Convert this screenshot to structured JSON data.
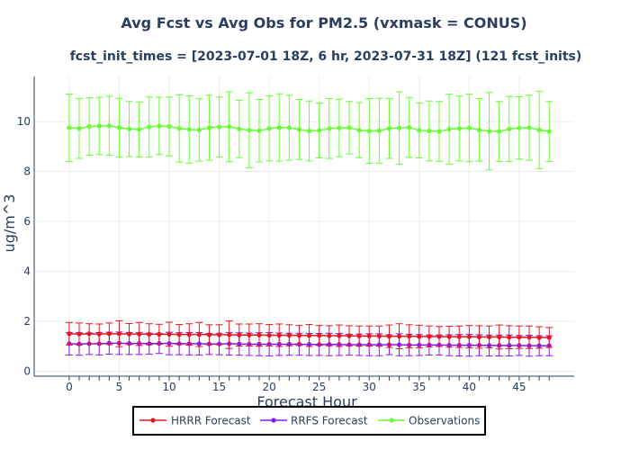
{
  "chart_data": {
    "type": "line",
    "title": "Avg Fcst vs Avg Obs for PM2.5 (vxmask = CONUS)",
    "subtitle": "fcst_init_times = [2023-07-01 18Z, 6 hr, 2023-07-31 18Z] (121 fcst_inits)",
    "xlabel": "Forecast Hour",
    "ylabel": "ug/m^3",
    "xlim": [
      -3.5,
      50.5
    ],
    "ylim": [
      -0.2,
      11.8
    ],
    "xticks": [
      0,
      5,
      10,
      15,
      20,
      25,
      30,
      35,
      40,
      45
    ],
    "xtick_labels": [
      "0",
      "5",
      "10",
      "15",
      "20",
      "25",
      "30",
      "35",
      "40",
      "45"
    ],
    "yticks": [
      0,
      2,
      4,
      6,
      8,
      10
    ],
    "ytick_labels": [
      "0",
      "2",
      "4",
      "6",
      "8",
      "10"
    ],
    "legend_position": "bottom-center",
    "x": [
      0,
      1,
      2,
      3,
      4,
      5,
      6,
      7,
      8,
      9,
      10,
      11,
      12,
      13,
      14,
      15,
      16,
      17,
      18,
      19,
      20,
      21,
      22,
      23,
      24,
      25,
      26,
      27,
      28,
      29,
      30,
      31,
      32,
      33,
      34,
      35,
      36,
      37,
      38,
      39,
      40,
      41,
      42,
      43,
      44,
      45,
      46,
      47,
      48
    ],
    "series": [
      {
        "name": "HRRR Forecast",
        "color": "#e8141f",
        "values": [
          1.5,
          1.49,
          1.5,
          1.49,
          1.5,
          1.5,
          1.49,
          1.49,
          1.48,
          1.48,
          1.48,
          1.47,
          1.47,
          1.47,
          1.46,
          1.46,
          1.46,
          1.45,
          1.45,
          1.45,
          1.44,
          1.44,
          1.44,
          1.43,
          1.43,
          1.43,
          1.42,
          1.42,
          1.42,
          1.41,
          1.41,
          1.41,
          1.4,
          1.4,
          1.4,
          1.39,
          1.39,
          1.39,
          1.38,
          1.38,
          1.38,
          1.37,
          1.37,
          1.37,
          1.36,
          1.36,
          1.36,
          1.35,
          1.35
        ],
        "error": [
          0.45,
          0.44,
          0.4,
          0.4,
          0.43,
          0.52,
          0.42,
          0.46,
          0.42,
          0.4,
          0.48,
          0.4,
          0.43,
          0.48,
          0.4,
          0.4,
          0.55,
          0.44,
          0.44,
          0.45,
          0.43,
          0.45,
          0.42,
          0.4,
          0.44,
          0.4,
          0.4,
          0.43,
          0.4,
          0.4,
          0.4,
          0.4,
          0.45,
          0.5,
          0.46,
          0.45,
          0.42,
          0.4,
          0.42,
          0.43,
          0.45,
          0.45,
          0.44,
          0.48,
          0.46,
          0.45,
          0.45,
          0.43,
          0.4
        ]
      },
      {
        "name": "RRFS Forecast",
        "color": "#8a16f0",
        "values": [
          1.1,
          1.09,
          1.1,
          1.1,
          1.12,
          1.12,
          1.11,
          1.11,
          1.1,
          1.11,
          1.11,
          1.1,
          1.1,
          1.1,
          1.09,
          1.09,
          1.1,
          1.09,
          1.08,
          1.08,
          1.08,
          1.08,
          1.08,
          1.08,
          1.07,
          1.07,
          1.07,
          1.07,
          1.06,
          1.06,
          1.06,
          1.06,
          1.06,
          1.06,
          1.05,
          1.05,
          1.05,
          1.05,
          1.04,
          1.04,
          1.04,
          1.04,
          1.03,
          1.03,
          1.03,
          1.03,
          1.02,
          1.02,
          1.02
        ],
        "error": [
          0.45,
          0.45,
          0.43,
          0.45,
          0.44,
          0.45,
          0.44,
          0.44,
          0.42,
          0.4,
          0.45,
          0.44,
          0.45,
          0.45,
          0.42,
          0.43,
          0.45,
          0.45,
          0.45,
          0.46,
          0.47,
          0.45,
          0.44,
          0.44,
          0.44,
          0.44,
          0.45,
          0.44,
          0.42,
          0.43,
          0.44,
          0.44,
          0.4,
          0.44,
          0.43,
          0.42,
          0.4,
          0.4,
          0.42,
          0.43,
          0.44,
          0.42,
          0.42,
          0.42,
          0.42,
          0.4,
          0.42,
          0.4,
          0.4
        ]
      },
      {
        "name": "Observations",
        "color": "#66ff33",
        "values": [
          9.75,
          9.72,
          9.8,
          9.82,
          9.83,
          9.75,
          9.7,
          9.68,
          9.78,
          9.82,
          9.8,
          9.72,
          9.68,
          9.66,
          9.75,
          9.78,
          9.79,
          9.7,
          9.65,
          9.63,
          9.72,
          9.76,
          9.75,
          9.68,
          9.62,
          9.64,
          9.72,
          9.74,
          9.75,
          9.65,
          9.62,
          9.63,
          9.72,
          9.74,
          9.76,
          9.64,
          9.62,
          9.6,
          9.69,
          9.72,
          9.74,
          9.66,
          9.61,
          9.6,
          9.7,
          9.74,
          9.75,
          9.66,
          9.6
        ],
        "error": [
          1.35,
          1.2,
          1.15,
          1.15,
          1.18,
          1.18,
          1.1,
          1.1,
          1.2,
          1.15,
          1.18,
          1.35,
          1.35,
          1.25,
          1.3,
          1.2,
          1.4,
          1.15,
          1.5,
          1.25,
          1.3,
          1.35,
          1.3,
          1.2,
          1.2,
          1.1,
          1.2,
          1.15,
          1.05,
          1.1,
          1.3,
          1.3,
          1.2,
          1.45,
          1.2,
          1.1,
          1.2,
          1.2,
          1.4,
          1.3,
          1.35,
          1.25,
          1.55,
          1.2,
          1.3,
          1.25,
          1.3,
          1.55,
          1.2
        ]
      }
    ]
  }
}
